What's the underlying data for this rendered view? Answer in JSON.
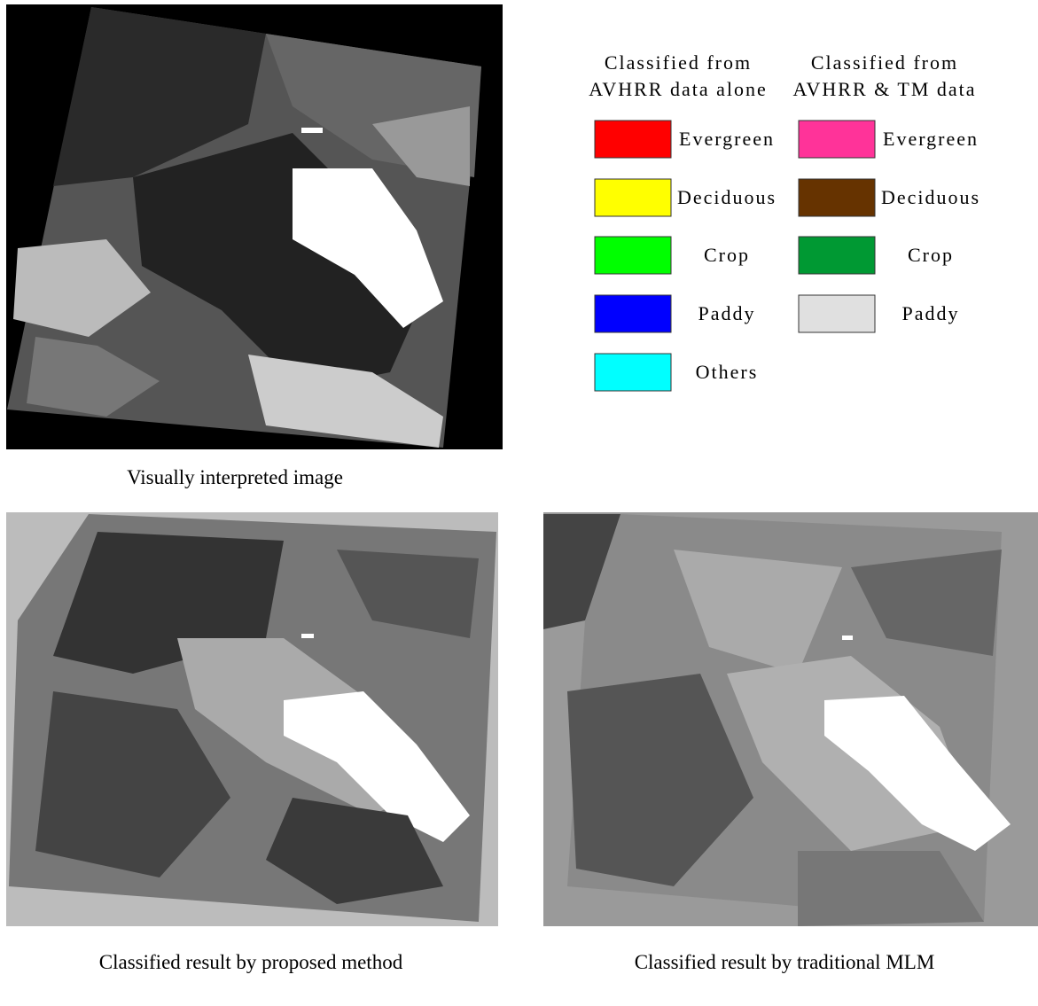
{
  "figure": {
    "panels": [
      {
        "caption": "Visually interpreted image"
      },
      {
        "caption": "Classified result by proposed method"
      },
      {
        "caption": "Classified result by traditional MLM"
      }
    ],
    "legend": {
      "columns": [
        {
          "header": [
            "Classified from",
            "AVHRR data alone"
          ],
          "items": [
            {
              "label": "Evergreen",
              "color": "#ff0000"
            },
            {
              "label": "Deciduous",
              "color": "#ffff00"
            },
            {
              "label": "Crop",
              "color": "#00ff00"
            },
            {
              "label": "Paddy",
              "color": "#0000ff"
            },
            {
              "label": "Others",
              "color": "#00ffff"
            }
          ]
        },
        {
          "header": [
            "Classified from",
            "AVHRR & TM data"
          ],
          "items": [
            {
              "label": "Evergreen",
              "color": "#ff3399"
            },
            {
              "label": "Deciduous",
              "color": "#663300"
            },
            {
              "label": "Crop",
              "color": "#009933"
            },
            {
              "label": "Paddy",
              "color": "#e0e0e0"
            }
          ]
        }
      ]
    }
  }
}
